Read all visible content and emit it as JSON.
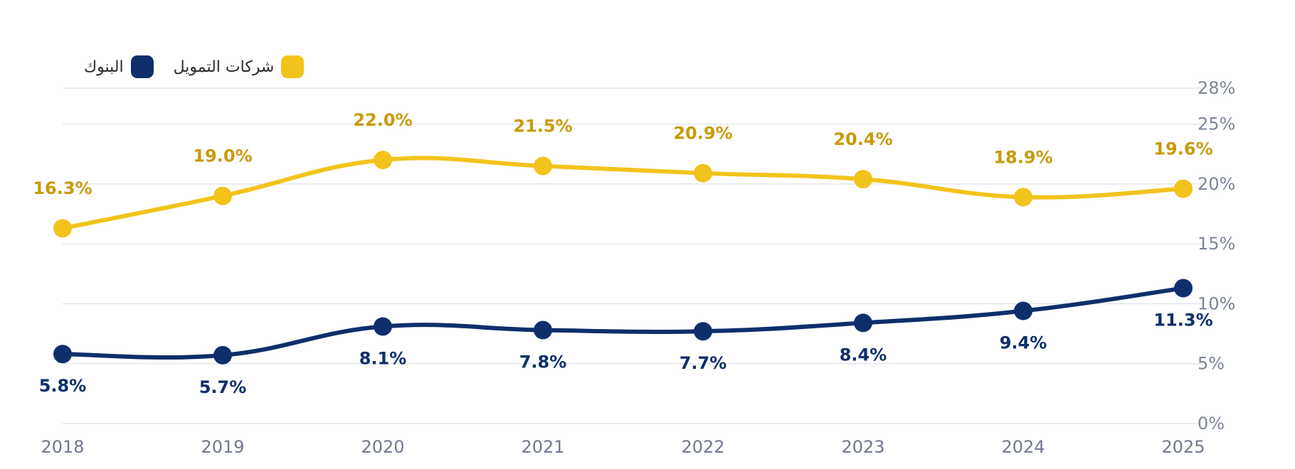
{
  "chart_data": {
    "type": "line",
    "x": [
      "2018",
      "2019",
      "2020",
      "2021",
      "2022",
      "2023",
      "2024",
      "2025"
    ],
    "series": [
      {
        "name": "شركات التمويل",
        "values": [
          16.3,
          19.0,
          22.0,
          21.5,
          20.9,
          20.4,
          18.9,
          19.6
        ],
        "labels": [
          "16.3%",
          "19.0%",
          "22.0%",
          "21.5%",
          "20.9%",
          "20.4%",
          "18.9%",
          "19.6%"
        ],
        "color": "#F2C31C",
        "label_color": "#C99A0A"
      },
      {
        "name": "البنوك",
        "values": [
          5.8,
          5.7,
          8.1,
          7.8,
          7.7,
          8.4,
          9.4,
          11.3
        ],
        "labels": [
          "5.8%",
          "5.7%",
          "8.1%",
          "7.8%",
          "7.7%",
          "8.4%",
          "9.4%",
          "11.3%"
        ],
        "color": "#0E2F6B",
        "label_color": "#0E2F6B"
      }
    ],
    "y_ticks": [
      "0%",
      "5%",
      "10%",
      "15%",
      "20%",
      "25%",
      "28%"
    ],
    "y_tick_values": [
      0,
      5,
      10,
      15,
      20,
      25,
      28
    ],
    "ylim": [
      0,
      28
    ],
    "grid": true,
    "legend_position": "top-left"
  },
  "legend": {
    "finance_label": "شركات التمويل",
    "banks_label": "البنوك"
  }
}
